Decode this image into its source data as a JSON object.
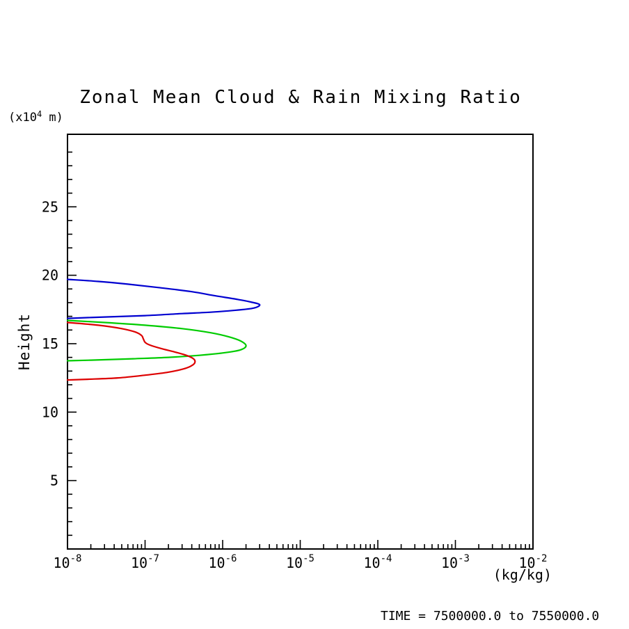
{
  "page": {
    "background": "#ffffff"
  },
  "chart_data": {
    "type": "line",
    "title": "Zonal Mean Cloud & Rain Mixing Ratio",
    "xlabel": "(kg/kg)",
    "ylabel": "Height",
    "y_axis_unit": {
      "prefix": "(x10",
      "exponent": "4",
      "suffix": " m)"
    },
    "x_scale": "log10",
    "xlim_exponents": [
      -8,
      -2
    ],
    "x_major_tick_exponents": [
      -8,
      -7,
      -6,
      -5,
      -4,
      -3,
      -2
    ],
    "x_tick_base": "10",
    "ylim": [
      0,
      30.3
    ],
    "y_major_ticks": [
      5,
      10,
      15,
      20,
      25
    ],
    "y_minor_tick_step": 1,
    "grid": false,
    "legend_position": "none",
    "frame_color": "#000000",
    "series": [
      {
        "name": "blue-profile",
        "color": "#0000d0",
        "points": [
          [
            1e-08,
            19.7
          ],
          [
            2.5e-08,
            19.55
          ],
          [
            6e-08,
            19.35
          ],
          [
            1.5e-07,
            19.1
          ],
          [
            4e-07,
            18.8
          ],
          [
            8e-07,
            18.5
          ],
          [
            1.5e-06,
            18.25
          ],
          [
            2.3e-06,
            18.05
          ],
          [
            3e-06,
            17.85
          ],
          [
            2.5e-06,
            17.6
          ],
          [
            1.5e-06,
            17.45
          ],
          [
            7e-07,
            17.3
          ],
          [
            3e-07,
            17.2
          ],
          [
            1e-07,
            17.05
          ],
          [
            3e-08,
            16.95
          ],
          [
            1e-08,
            16.85
          ]
        ]
      },
      {
        "name": "green-profile",
        "color": "#00cc00",
        "points": [
          [
            1e-08,
            16.7
          ],
          [
            3e-08,
            16.55
          ],
          [
            1e-07,
            16.35
          ],
          [
            3e-07,
            16.1
          ],
          [
            7e-07,
            15.8
          ],
          [
            1.2e-06,
            15.5
          ],
          [
            1.7e-06,
            15.2
          ],
          [
            2e-06,
            14.85
          ],
          [
            1.7e-06,
            14.55
          ],
          [
            1.1e-06,
            14.35
          ],
          [
            5e-07,
            14.15
          ],
          [
            2e-07,
            14.0
          ],
          [
            7e-08,
            13.9
          ],
          [
            2e-08,
            13.8
          ],
          [
            1e-08,
            13.75
          ]
        ]
      },
      {
        "name": "red-profile",
        "color": "#dd0000",
        "points": [
          [
            1e-08,
            16.55
          ],
          [
            2.5e-08,
            16.35
          ],
          [
            5e-08,
            16.1
          ],
          [
            7.5e-08,
            15.85
          ],
          [
            9e-08,
            15.6
          ],
          [
            9.5e-08,
            15.35
          ],
          [
            1e-07,
            15.1
          ],
          [
            1.15e-07,
            14.9
          ],
          [
            1.6e-07,
            14.65
          ],
          [
            2.4e-07,
            14.4
          ],
          [
            3.4e-07,
            14.15
          ],
          [
            4.2e-07,
            13.9
          ],
          [
            4.4e-07,
            13.65
          ],
          [
            4e-07,
            13.4
          ],
          [
            3.1e-07,
            13.15
          ],
          [
            1.9e-07,
            12.9
          ],
          [
            1e-07,
            12.7
          ],
          [
            4.5e-08,
            12.5
          ],
          [
            1.8e-08,
            12.4
          ],
          [
            1e-08,
            12.35
          ]
        ]
      }
    ],
    "footer_time_label": "TIME = 7500000.0 to 7550000.0"
  }
}
